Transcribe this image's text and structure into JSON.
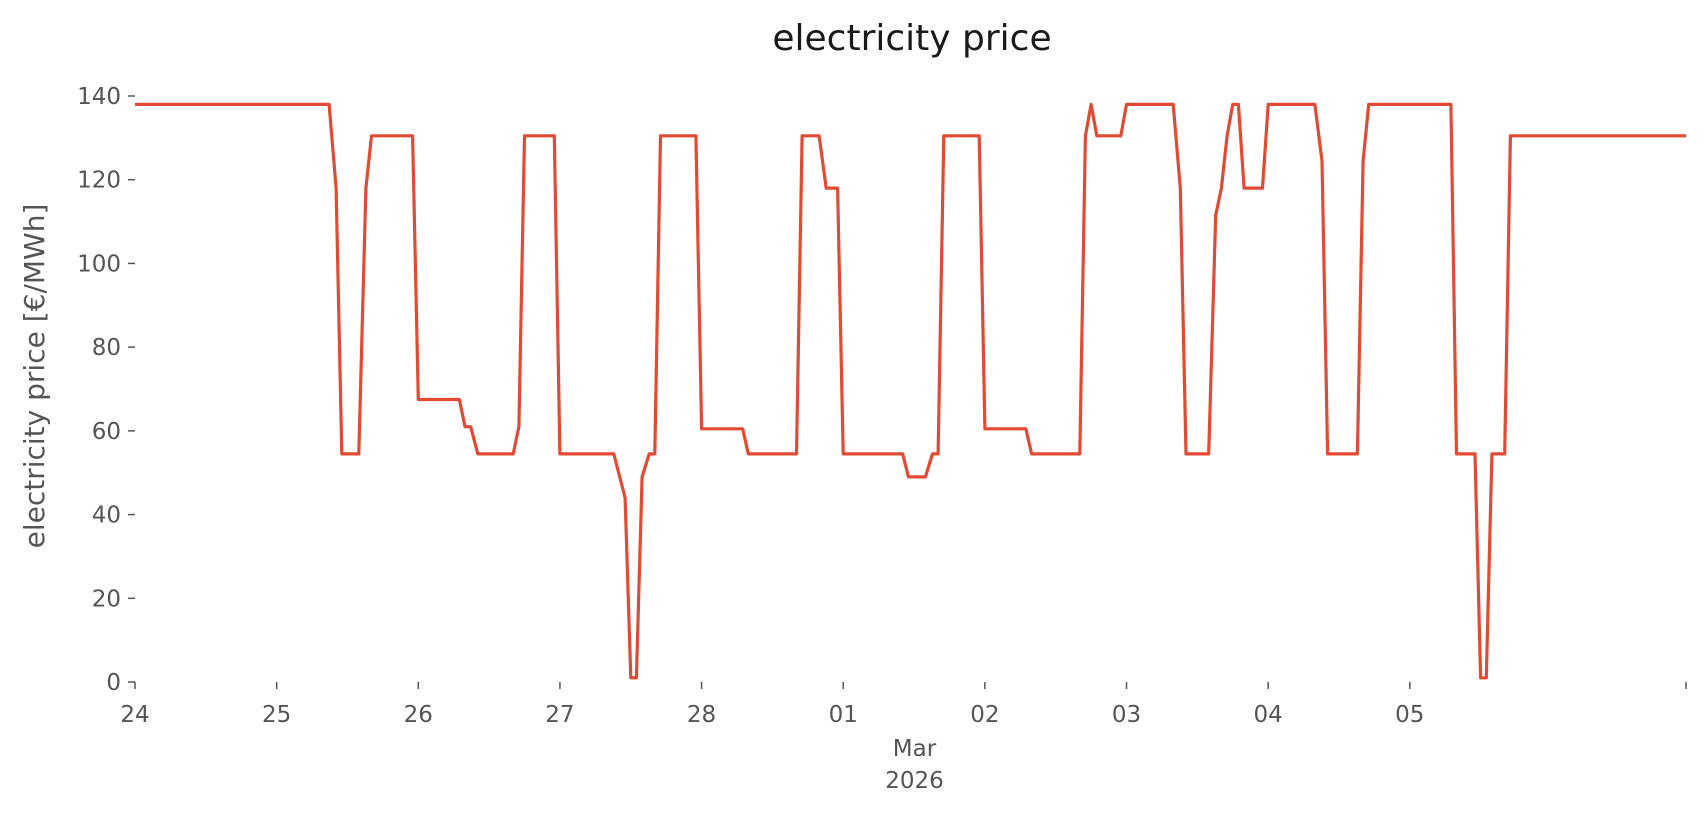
{
  "chart_data": {
    "type": "line",
    "title": "electricity price",
    "xlabel": "",
    "ylabel": "electricity price [€/MWh]",
    "x_unit": "days (24 Feb 2026 = 0)",
    "xlim": [
      0,
      10.95
    ],
    "ylim": [
      0,
      140
    ],
    "yticks": [
      0,
      20,
      40,
      60,
      80,
      100,
      120,
      140
    ],
    "xticks": [
      {
        "x": 0,
        "label": "24"
      },
      {
        "x": 1,
        "label": "25"
      },
      {
        "x": 2,
        "label": "26"
      },
      {
        "x": 3,
        "label": "27"
      },
      {
        "x": 4,
        "label": "28"
      },
      {
        "x": 5,
        "label": "01"
      },
      {
        "x": 6,
        "label": "02"
      },
      {
        "x": 7,
        "label": "03"
      },
      {
        "x": 8,
        "label": "04"
      },
      {
        "x": 9,
        "label": "05"
      }
    ],
    "xtick_sublabel": {
      "month": "Mar",
      "year": "2026"
    },
    "grid": false,
    "color": "#e24a33",
    "series": [
      {
        "points": [
          [
            0.0,
            138
          ],
          [
            1.37,
            138
          ],
          [
            1.42,
            118
          ],
          [
            1.46,
            54.5
          ],
          [
            1.58,
            54.5
          ],
          [
            1.63,
            118
          ],
          [
            1.67,
            130.5
          ],
          [
            1.96,
            130.5
          ],
          [
            2.0,
            67.5
          ],
          [
            2.29,
            67.5
          ],
          [
            2.33,
            61
          ],
          [
            2.37,
            61
          ],
          [
            2.42,
            54.5
          ],
          [
            2.67,
            54.5
          ],
          [
            2.71,
            61
          ],
          [
            2.75,
            130.5
          ],
          [
            2.96,
            130.5
          ],
          [
            3.0,
            54.5
          ],
          [
            3.38,
            54.5
          ],
          [
            3.46,
            44
          ],
          [
            3.5,
            1
          ],
          [
            3.54,
            1
          ],
          [
            3.58,
            49
          ],
          [
            3.63,
            54.5
          ],
          [
            3.67,
            54.5
          ],
          [
            3.71,
            130.5
          ],
          [
            3.96,
            130.5
          ],
          [
            4.0,
            60.5
          ],
          [
            4.29,
            60.5
          ],
          [
            4.33,
            54.5
          ],
          [
            4.67,
            54.5
          ],
          [
            4.71,
            130.5
          ],
          [
            4.83,
            130.5
          ],
          [
            4.88,
            118
          ],
          [
            4.96,
            118
          ],
          [
            5.0,
            54.5
          ],
          [
            5.42,
            54.5
          ],
          [
            5.46,
            49
          ],
          [
            5.58,
            49
          ],
          [
            5.63,
            54.5
          ],
          [
            5.67,
            54.5
          ],
          [
            5.71,
            130.5
          ],
          [
            5.96,
            130.5
          ],
          [
            6.0,
            60.5
          ],
          [
            6.29,
            60.5
          ],
          [
            6.33,
            54.5
          ],
          [
            6.67,
            54.5
          ],
          [
            6.71,
            130.5
          ],
          [
            6.75,
            138
          ],
          [
            6.79,
            130.5
          ],
          [
            6.96,
            130.5
          ],
          [
            7.0,
            138
          ],
          [
            7.33,
            138
          ],
          [
            7.38,
            118
          ],
          [
            7.42,
            54.5
          ],
          [
            7.58,
            54.5
          ],
          [
            7.63,
            111.5
          ],
          [
            7.67,
            118
          ],
          [
            7.71,
            130.5
          ],
          [
            7.75,
            138
          ],
          [
            7.79,
            138
          ],
          [
            7.83,
            118
          ],
          [
            7.96,
            118
          ],
          [
            8.0,
            138
          ],
          [
            8.33,
            138
          ],
          [
            8.38,
            124.5
          ],
          [
            8.42,
            54.5
          ],
          [
            8.63,
            54.5
          ],
          [
            8.67,
            124.5
          ],
          [
            8.71,
            138
          ],
          [
            9.29,
            138
          ],
          [
            9.33,
            54.5
          ],
          [
            9.46,
            54.5
          ],
          [
            9.5,
            1
          ],
          [
            9.54,
            1
          ],
          [
            9.58,
            54.5
          ],
          [
            9.67,
            54.5
          ],
          [
            9.71,
            130.5
          ],
          [
            10.95,
            130.5
          ]
        ]
      }
    ]
  }
}
